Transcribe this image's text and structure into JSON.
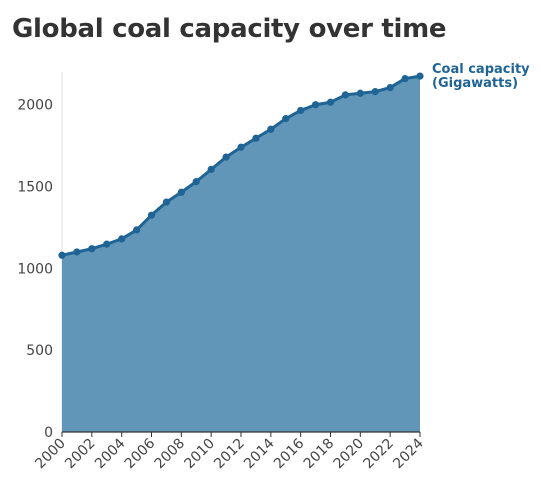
{
  "title": "Global coal capacity over time",
  "chart_data": {
    "type": "area",
    "title": "Global coal capacity over time",
    "xlabel": "",
    "ylabel": "",
    "x": [
      2000,
      2001,
      2002,
      2003,
      2004,
      2005,
      2006,
      2007,
      2008,
      2009,
      2010,
      2011,
      2012,
      2013,
      2014,
      2015,
      2016,
      2017,
      2018,
      2019,
      2020,
      2021,
      2022,
      2023,
      2024
    ],
    "series": [
      {
        "name": "Coal capacity (Gigawatts)",
        "label_lines": [
          "Coal capacity",
          "(Gigawatts)"
        ],
        "values": [
          1080,
          1100,
          1120,
          1148,
          1180,
          1235,
          1325,
          1405,
          1465,
          1530,
          1605,
          1680,
          1740,
          1795,
          1850,
          1915,
          1965,
          2000,
          2015,
          2060,
          2070,
          2080,
          2105,
          2160,
          2175
        ],
        "color": "#1f6494",
        "fill": "#6196b8"
      }
    ],
    "xlim": [
      2000,
      2024
    ],
    "ylim": [
      0,
      2200
    ],
    "yticks": [
      0,
      500,
      1000,
      1500,
      2000
    ],
    "xticks": [
      2000,
      2002,
      2004,
      2006,
      2008,
      2010,
      2012,
      2014,
      2016,
      2018,
      2020,
      2022,
      2024
    ],
    "grid": false,
    "legend": "direct-label-right"
  }
}
